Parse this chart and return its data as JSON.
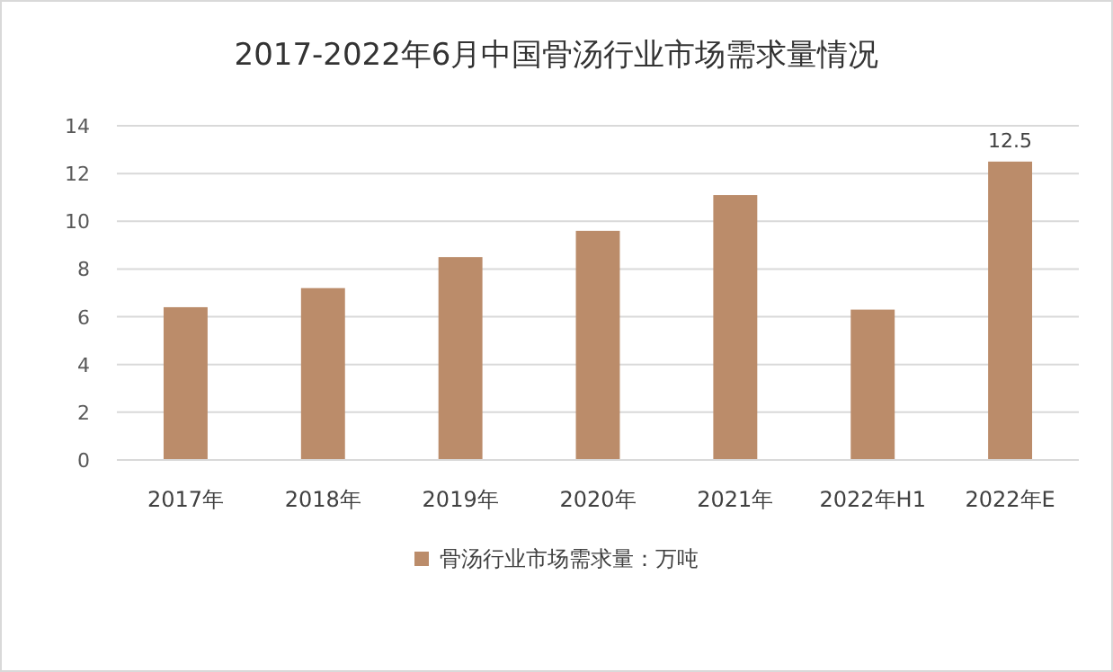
{
  "chart_data": {
    "type": "bar",
    "title": "2017-2022年6月中国骨汤行业市场需求量情况",
    "categories": [
      "2017年",
      "2018年",
      "2019年",
      "2020年",
      "2021年",
      "2022年H1",
      "2022年E"
    ],
    "series": [
      {
        "name": "骨汤行业市场需求量：万吨",
        "color": "#bb8c6a",
        "values": [
          6.4,
          7.2,
          8.5,
          9.6,
          11.1,
          6.3,
          12.5
        ],
        "value_labels": [
          null,
          null,
          null,
          null,
          null,
          null,
          "12.5"
        ]
      }
    ],
    "ylim": [
      0,
      14
    ],
    "yticks": [
      0,
      2,
      4,
      6,
      8,
      10,
      12,
      14
    ],
    "grid": "y",
    "legend": "bottom"
  }
}
